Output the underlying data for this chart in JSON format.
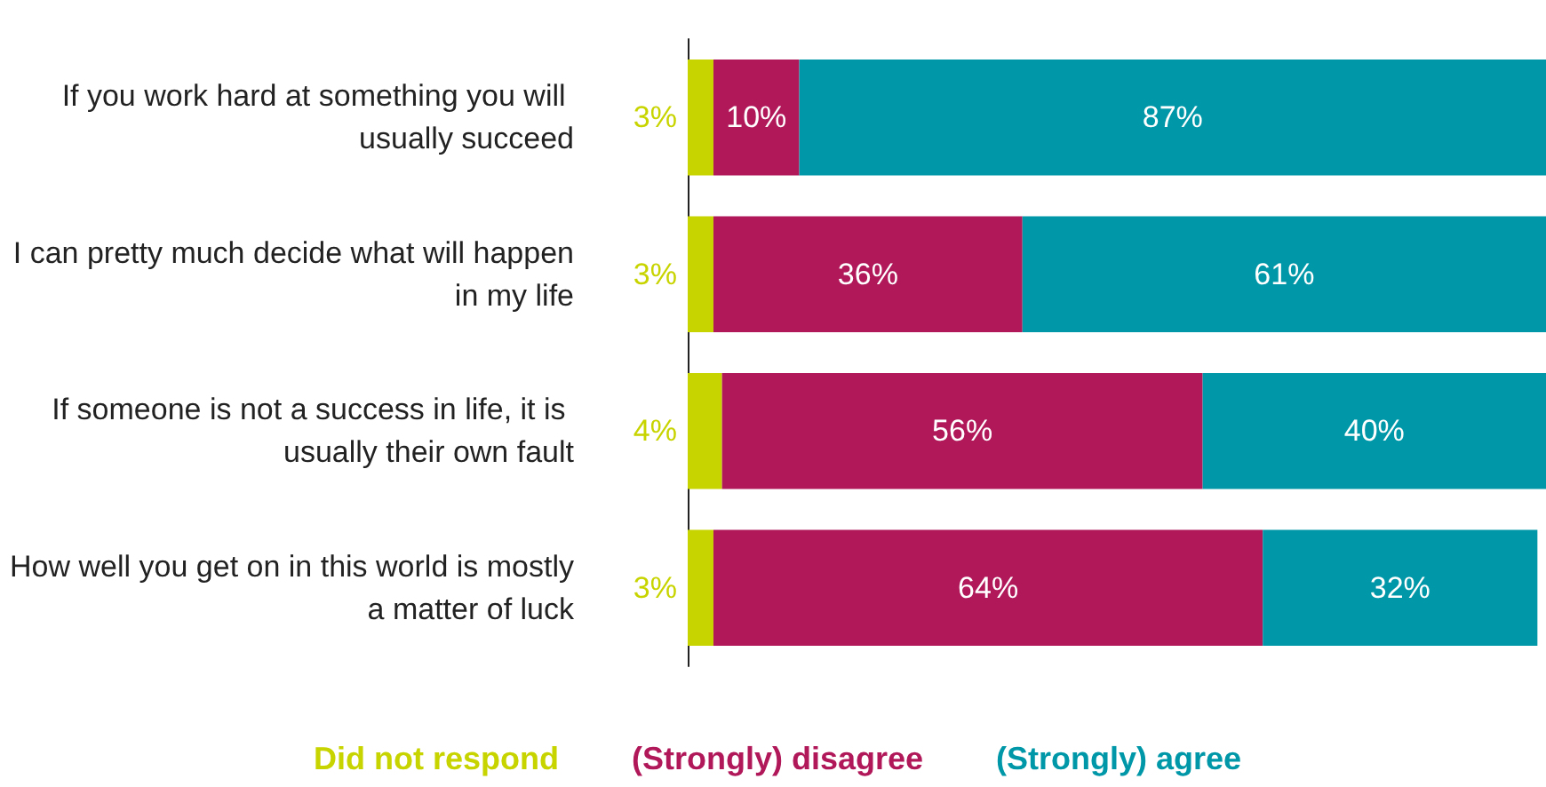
{
  "chart_data": {
    "type": "bar",
    "orientation": "horizontal",
    "stacked": true,
    "legend": "bottom",
    "categories": [
      "If you work hard at something you will usually succeed",
      "I can pretty much decide what will happen in my life",
      "If someone is not a success in life, it is usually their own fault",
      "How well you get on in this world is mostly a matter of luck"
    ],
    "series": [
      {
        "name": "Did not respond",
        "color": "#c8d400",
        "values": [
          3,
          3,
          4,
          3
        ],
        "value_labels": [
          "3%",
          "3%",
          "4%",
          "3%"
        ]
      },
      {
        "name": "(Strongly) disagree",
        "color": "#b0185a",
        "values": [
          10,
          36,
          56,
          64
        ],
        "value_labels": [
          "10%",
          "36%",
          "56%",
          "64%"
        ]
      },
      {
        "name": "(Strongly) agree",
        "color": "#0098a8",
        "values": [
          87,
          61,
          40,
          32
        ],
        "value_labels": [
          "87%",
          "61%",
          "40%",
          "32%"
        ]
      }
    ]
  }
}
